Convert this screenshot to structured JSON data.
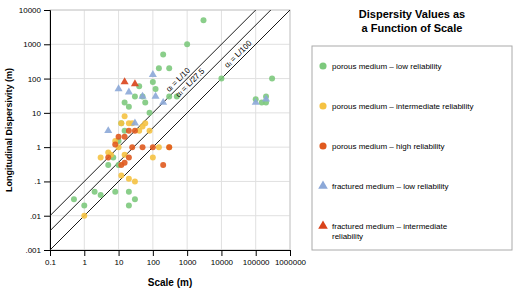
{
  "chart_data": {
    "type": "scatter",
    "title": "Dispersity Values as\na Function of Scale",
    "x_label": "Scale (m)",
    "y_label": "Longitudinal Dispersivity (m)",
    "log": true,
    "grid": true,
    "legend": "right",
    "xlim": [
      0.1,
      1000000
    ],
    "ylim": [
      0.001,
      10000
    ],
    "xticks": [
      0.1,
      1,
      10,
      100,
      1000,
      10000,
      100000,
      1000000
    ],
    "yticks": [
      {
        "value": 0.001,
        "label": ".001"
      },
      {
        "value": 0.01,
        "label": ".01"
      },
      {
        "value": 0.1,
        "label": ".1"
      },
      1,
      10,
      100,
      1000,
      10000
    ],
    "reference_lines": [
      {
        "slope": 0.1,
        "label": "αₗ = L/10",
        "color": "#1a1a1a"
      },
      {
        "slope": 0.03636,
        "label": "αₗ = L/27.5",
        "color": "#1a1a1a"
      },
      {
        "slope": 0.01,
        "label": "αₗ = L/100",
        "color": "#1a1a1a"
      }
    ],
    "series": [
      {
        "name": "porous medium – low reliability",
        "color": "#7dc97d",
        "marker": "circle",
        "x": [
          0.5,
          1,
          2,
          3,
          5,
          7,
          8,
          10,
          10,
          12,
          15,
          15,
          20,
          20,
          20,
          30,
          30,
          40,
          50,
          60,
          80,
          100,
          120,
          150,
          200,
          300,
          300,
          500,
          1000,
          3000,
          10000,
          100000,
          150000,
          200000,
          200000,
          300000
        ],
        "values": [
          0.03,
          0.02,
          0.05,
          0.04,
          0.3,
          0.5,
          0.05,
          1.5,
          0.3,
          5,
          20,
          3,
          15,
          0.05,
          0.02,
          0.03,
          30,
          60,
          30,
          20,
          10,
          80,
          50,
          200,
          500,
          200,
          30,
          30,
          1000,
          5000,
          100,
          25,
          20,
          20,
          30,
          100
        ]
      },
      {
        "name": "porous medium – intermediate reliability",
        "color": "#f5c242",
        "marker": "circle",
        "x": [
          1,
          3,
          5,
          6,
          8,
          10,
          12,
          12,
          15,
          15,
          20,
          20,
          25,
          30,
          40,
          50,
          60,
          80,
          100,
          150,
          300
        ],
        "values": [
          0.01,
          0.5,
          0.7,
          0.6,
          1.5,
          1.0,
          0.15,
          5,
          0.6,
          8,
          0.12,
          5,
          5,
          0.1,
          3,
          4,
          5,
          3,
          0.5,
          1,
          1
        ]
      },
      {
        "name": "porous medium – high reliability",
        "color": "#e05a1e",
        "marker": "circle",
        "x": [
          5,
          8,
          10,
          12,
          15,
          15,
          20,
          20,
          25,
          30,
          50,
          100,
          200,
          300
        ],
        "values": [
          0.5,
          1.2,
          2,
          0.3,
          0.35,
          2,
          3,
          0.5,
          1,
          3,
          1,
          1,
          0.3,
          1
        ]
      },
      {
        "name": "fractured medium – low reliability",
        "color": "#8ca8d8",
        "marker": "triangle",
        "x": [
          5,
          10,
          20,
          30,
          50,
          100,
          120,
          200,
          100000,
          200000
        ],
        "values": [
          3,
          50,
          40,
          5,
          30,
          130,
          30,
          20,
          20,
          25
        ]
      },
      {
        "name": "fractured medium – intermediate\nreliability",
        "color": "#d9421a",
        "marker": "triangle",
        "x": [
          15,
          30
        ],
        "values": [
          80,
          70
        ]
      }
    ]
  }
}
